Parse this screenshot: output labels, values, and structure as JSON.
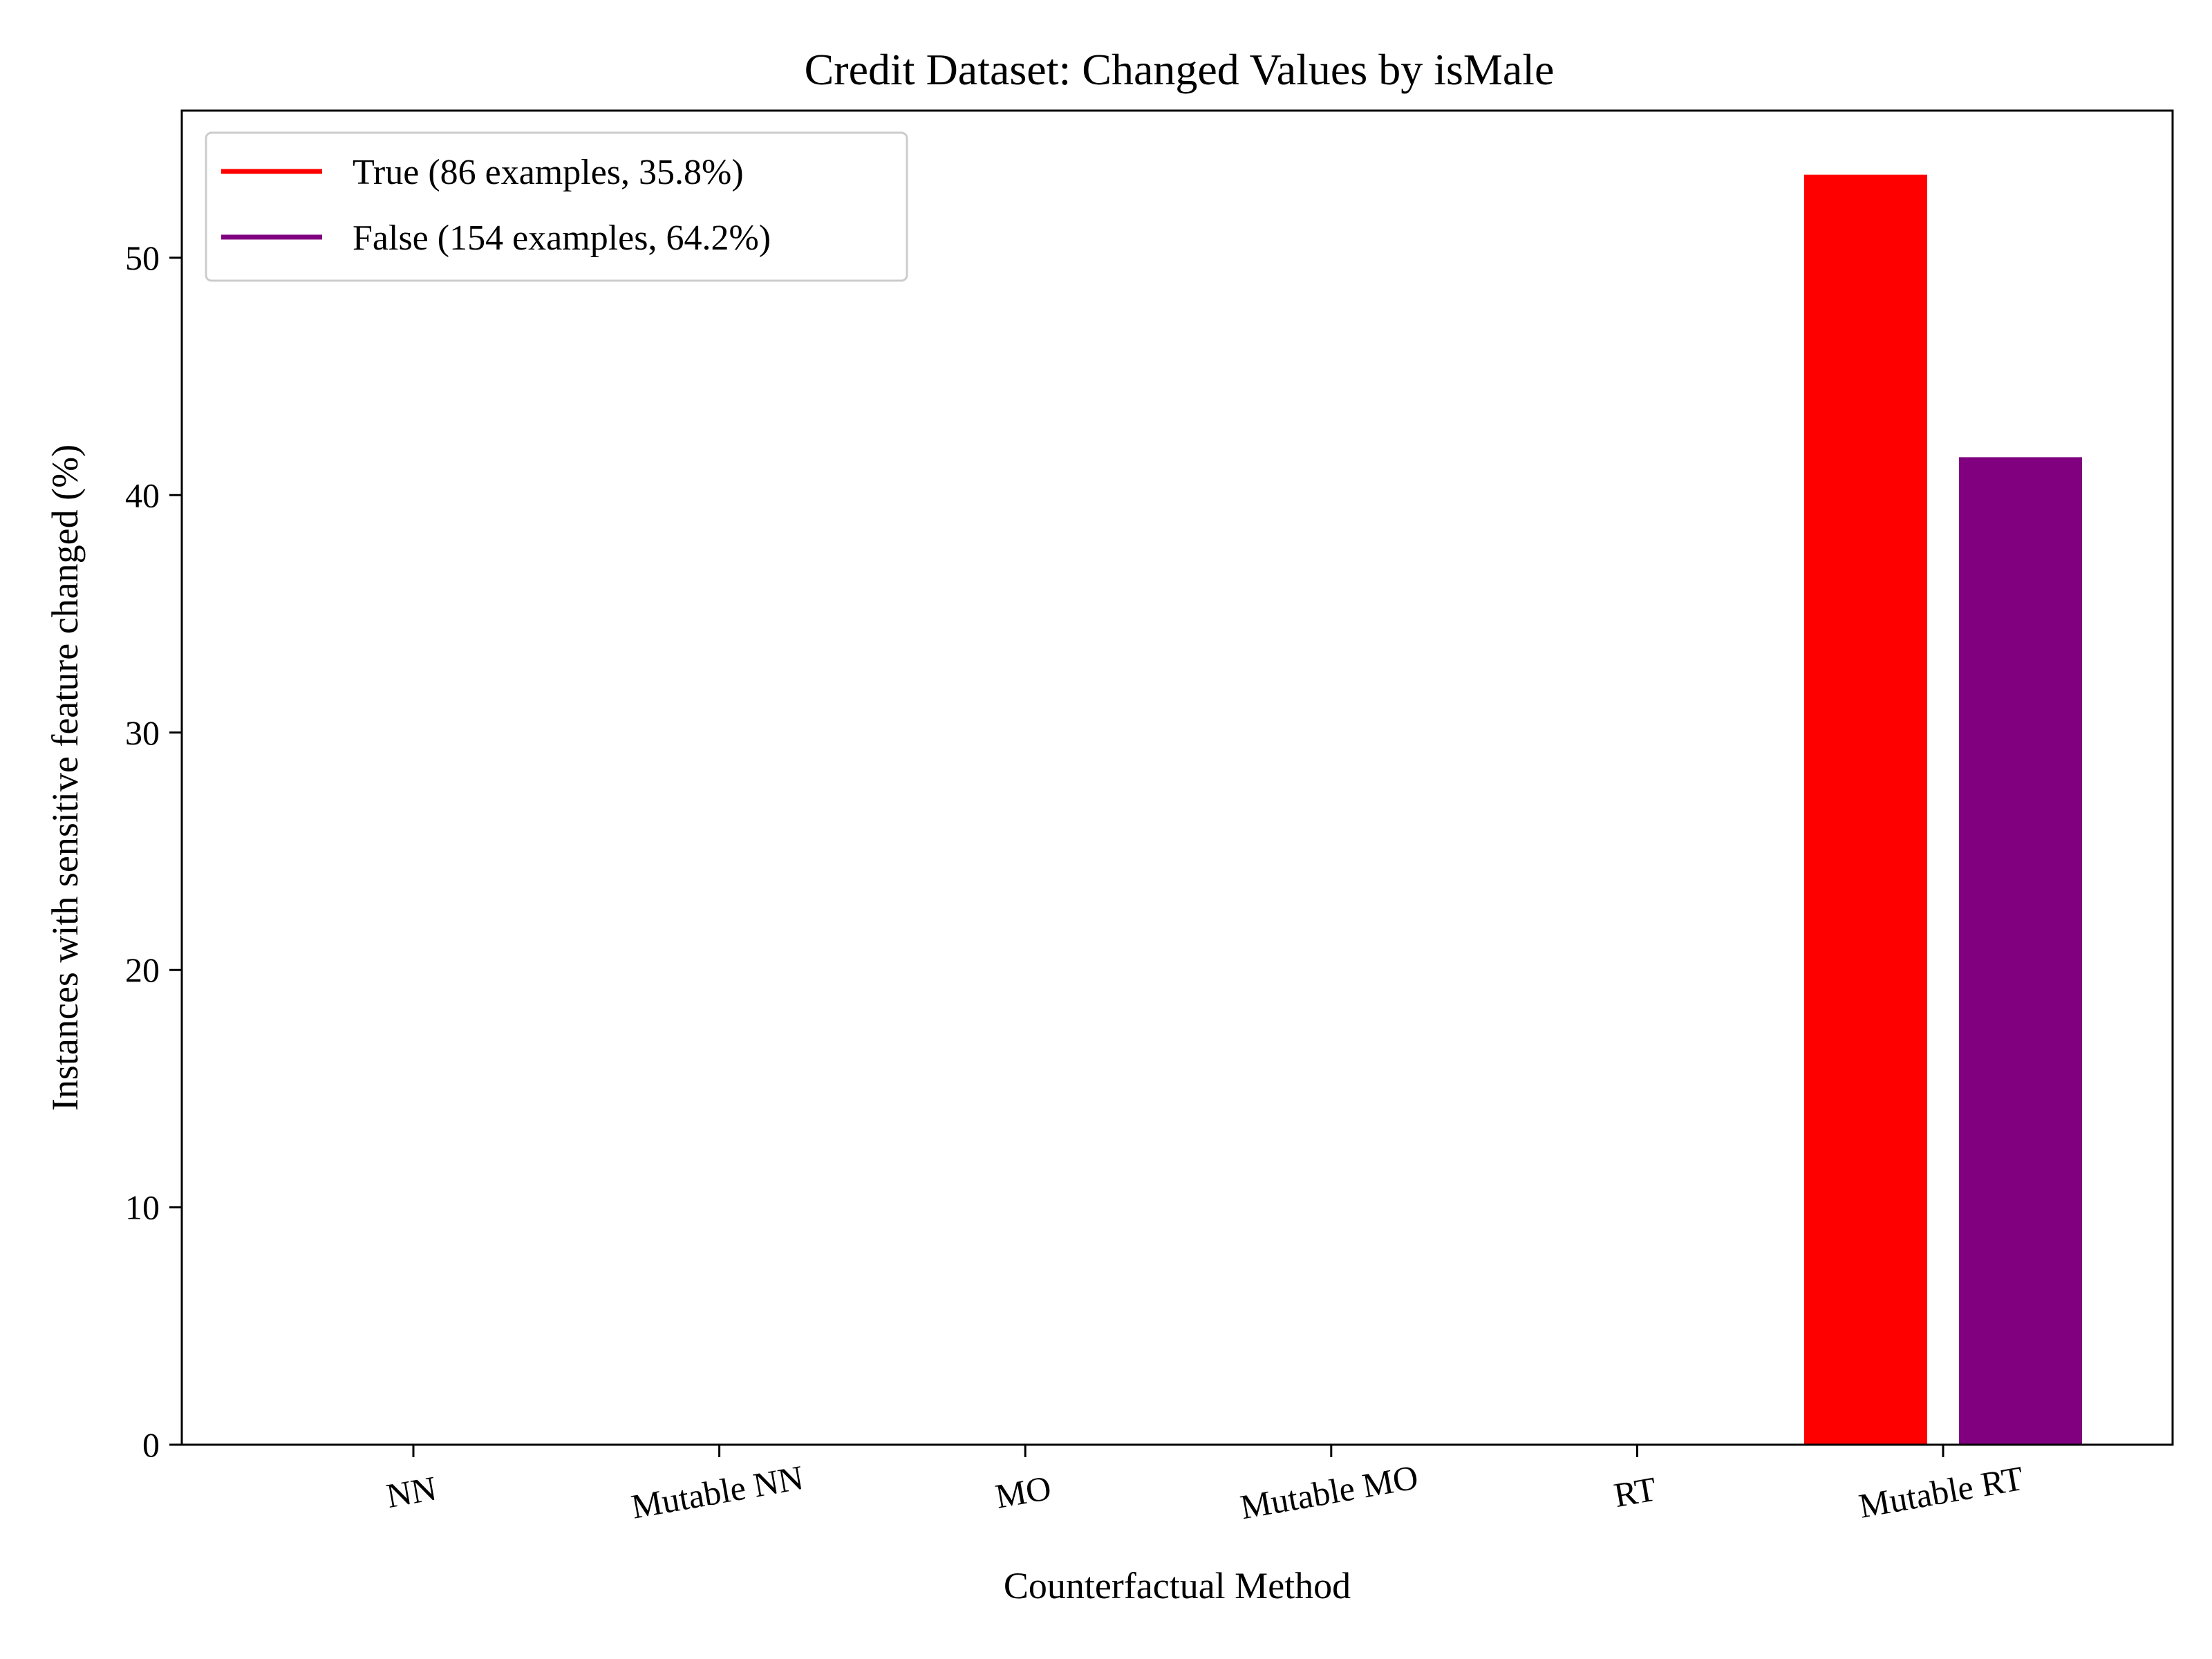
{
  "chart_data": {
    "type": "bar",
    "title": "Credit Dataset: Changed Values by isMale",
    "xlabel": "Counterfactual Method",
    "ylabel": "Instances with sensitive feature changed (%)",
    "categories": [
      "NN",
      "Mutable NN",
      "MO",
      "Mutable MO",
      "RT",
      "Mutable RT"
    ],
    "series": [
      {
        "name": "True (86 examples, 35.8%)",
        "color": "#ff0000",
        "values": [
          0,
          0,
          0,
          0,
          0,
          53.5
        ]
      },
      {
        "name": "False (154 examples, 64.2%)",
        "color": "#800080",
        "values": [
          0,
          0,
          0,
          0,
          0,
          41.6
        ]
      }
    ],
    "ylim": [
      0,
      56.2
    ],
    "yticks": [
      0,
      10,
      20,
      30,
      40,
      50
    ],
    "grid": false,
    "legend_position": "top-left"
  }
}
